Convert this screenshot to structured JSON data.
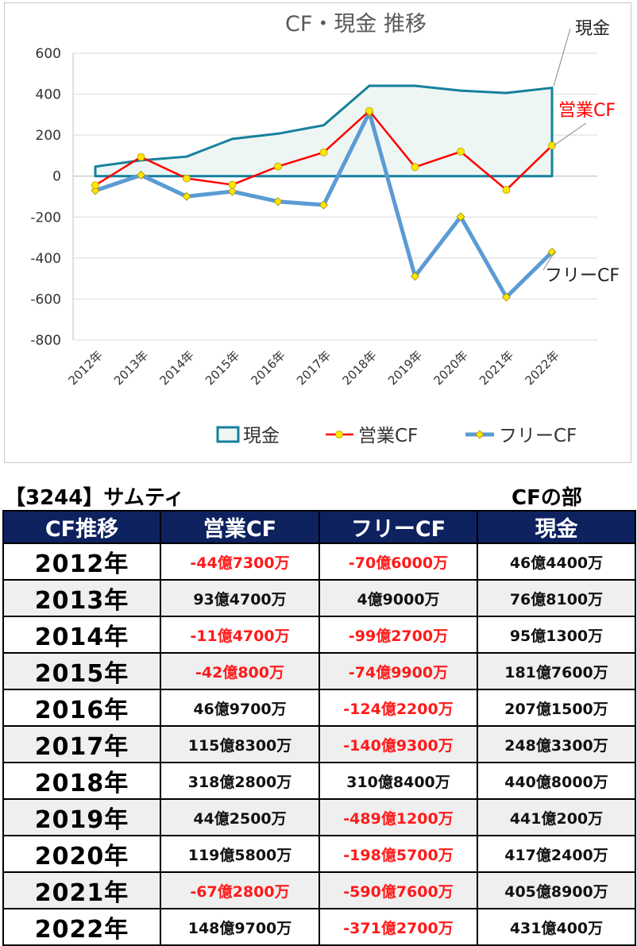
{
  "chart_data": {
    "type": "line",
    "title": "CF・現金 推移",
    "categories": [
      "2012年",
      "2013年",
      "2014年",
      "2015年",
      "2016年",
      "2017年",
      "2018年",
      "2019年",
      "2020年",
      "2021年",
      "2022年"
    ],
    "ylim": [
      -800,
      600
    ],
    "yticks": [
      "600",
      "400",
      "200",
      "0",
      "-200",
      "-400",
      "-600",
      "-800"
    ],
    "grid": true,
    "legend_position": "bottom",
    "series": [
      {
        "name": "現金",
        "type": "area",
        "color": "#15809c",
        "values": [
          46.44,
          76.81,
          95.13,
          181.76,
          207.15,
          248.33,
          440.8,
          441.02,
          417.24,
          405.89,
          431.04
        ]
      },
      {
        "name": "営業CF",
        "type": "line",
        "color": "#ff0000",
        "values": [
          -44.73,
          93.47,
          -11.47,
          -42.08,
          46.97,
          115.83,
          318.28,
          44.25,
          119.58,
          -67.28,
          148.97
        ]
      },
      {
        "name": "フリーCF",
        "type": "line",
        "color": "#5b9bd5",
        "values": [
          -70.6,
          4.9,
          -99.27,
          -74.99,
          -124.22,
          -140.93,
          310.84,
          -489.12,
          -198.57,
          -590.76,
          -371.27
        ]
      }
    ],
    "annotations": [
      {
        "text": "現金",
        "color": "#222222"
      },
      {
        "text": "営業CF",
        "color": "#ff0000"
      },
      {
        "text": "フリーCF",
        "color": "#222222"
      }
    ]
  },
  "company_title": "【3244】サムティ",
  "section_title": "CFの部",
  "table": {
    "headers": [
      "CF推移",
      "営業CF",
      "フリーCF",
      "現金"
    ],
    "rows": [
      {
        "year": "2012年",
        "op": "-44億7300万",
        "free": "-70億6000万",
        "cash": "46億4400万"
      },
      {
        "year": "2013年",
        "op": "93億4700万",
        "free": "4億9000万",
        "cash": "76億8100万"
      },
      {
        "year": "2014年",
        "op": "-11億4700万",
        "free": "-99億2700万",
        "cash": "95億1300万"
      },
      {
        "year": "2015年",
        "op": "-42億800万",
        "free": "-74億9900万",
        "cash": "181億7600万"
      },
      {
        "year": "2016年",
        "op": "46億9700万",
        "free": "-124億2200万",
        "cash": "207億1500万"
      },
      {
        "year": "2017年",
        "op": "115億8300万",
        "free": "-140億9300万",
        "cash": "248億3300万"
      },
      {
        "year": "2018年",
        "op": "318億2800万",
        "free": "310億8400万",
        "cash": "440億8000万"
      },
      {
        "year": "2019年",
        "op": "44億2500万",
        "free": "-489億1200万",
        "cash": "441億200万"
      },
      {
        "year": "2020年",
        "op": "119億5800万",
        "free": "-198億5700万",
        "cash": "417億2400万"
      },
      {
        "year": "2021年",
        "op": "-67億2800万",
        "free": "-590億7600万",
        "cash": "405億8900万"
      },
      {
        "year": "2022年",
        "op": "148億9700万",
        "free": "-371億2700万",
        "cash": "431億400万"
      }
    ]
  }
}
